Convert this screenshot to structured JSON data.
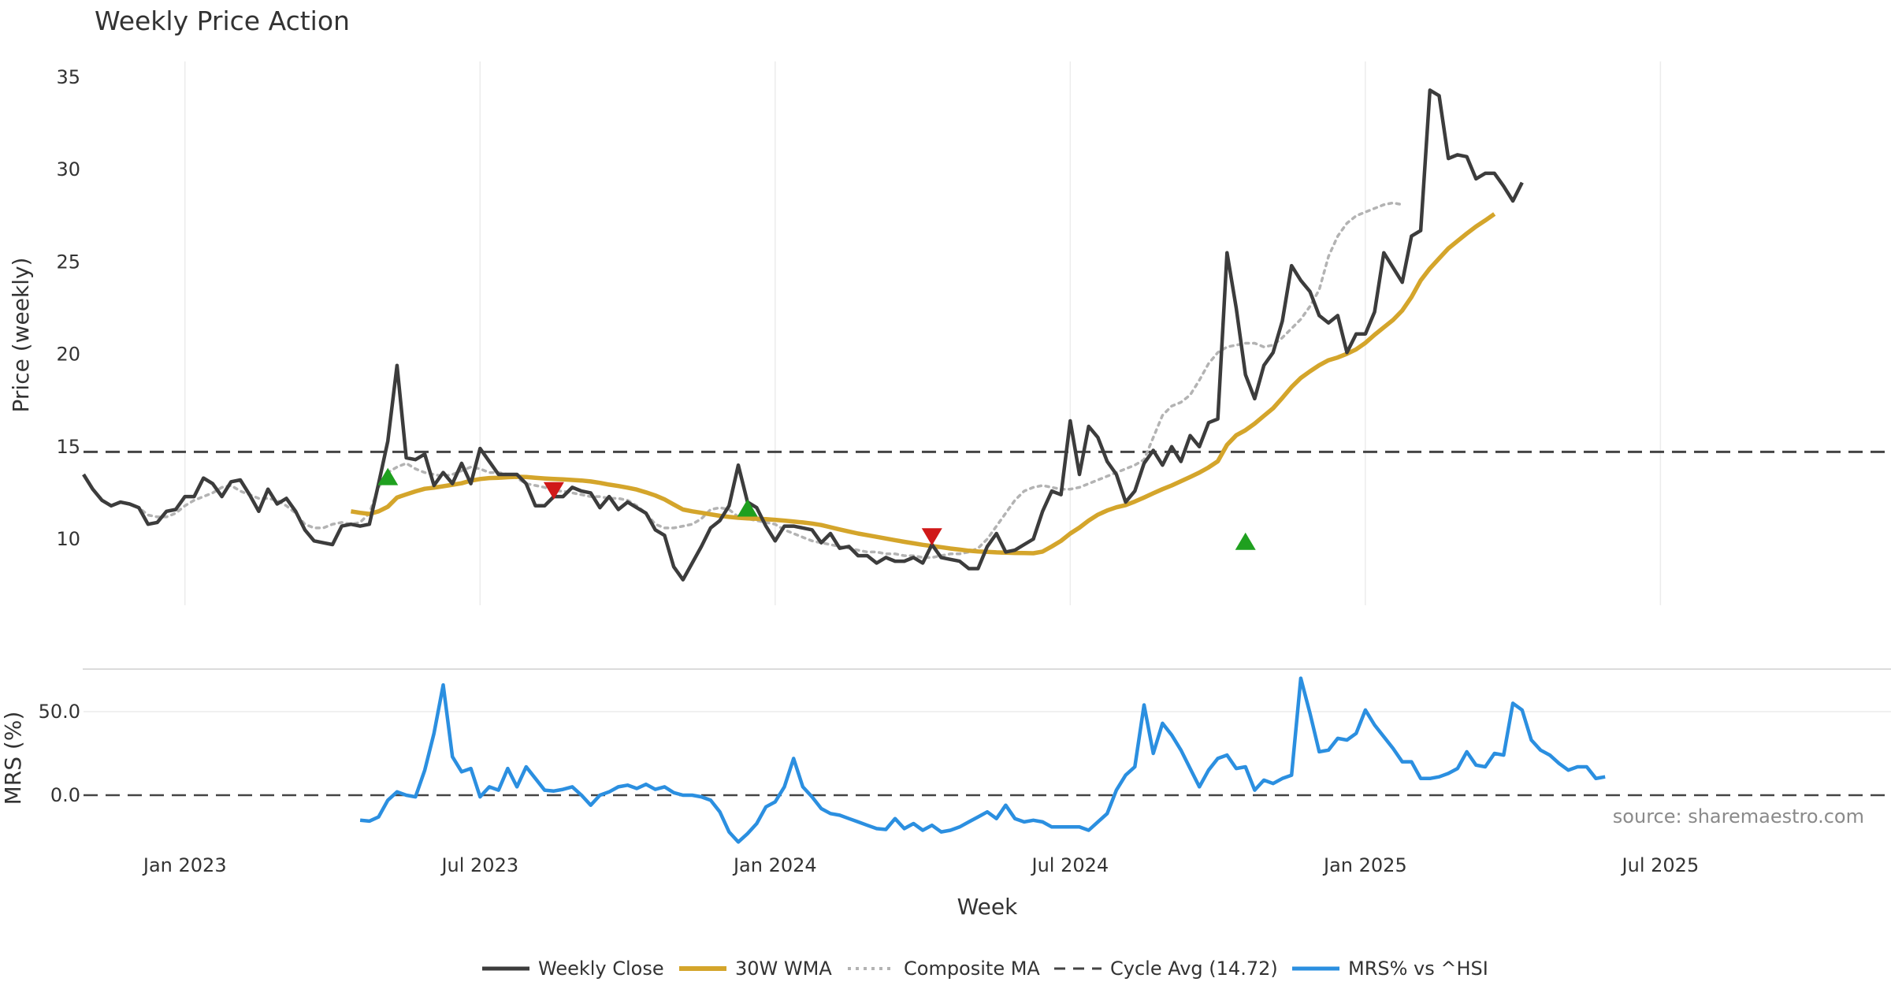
{
  "chart_data": [
    {
      "type": "line",
      "title": "Weekly Price Action",
      "ylabel": "Price (weekly)",
      "ylim": [
        6,
        36
      ],
      "yticks": [
        10,
        15,
        20,
        25,
        30,
        35
      ],
      "x_range_weeks": [
        0,
        196
      ],
      "x_ticks": [
        {
          "label": "Jan 2023",
          "week": 11
        },
        {
          "label": "Jul 2023",
          "week": 43
        },
        {
          "label": "Jan 2024",
          "week": 75
        },
        {
          "label": "Jul 2024",
          "week": 107
        },
        {
          "label": "Jan 2025",
          "week": 139
        },
        {
          "label": "Jul 2025",
          "week": 171
        }
      ],
      "cycle_avg": 14.72,
      "series": [
        {
          "name": "Weekly Close",
          "color": "#3c3c3c",
          "values": [
            13.5,
            12.7,
            12.1,
            11.8,
            12.0,
            11.9,
            11.7,
            10.8,
            10.9,
            11.5,
            11.6,
            12.3,
            12.3,
            13.3,
            13.0,
            12.3,
            13.1,
            13.2,
            12.4,
            11.5,
            12.7,
            11.9,
            12.2,
            11.5,
            10.5,
            9.9,
            9.8,
            9.7,
            10.7,
            10.8,
            10.7,
            10.8,
            13.0,
            15.3,
            19.4,
            14.4,
            14.3,
            14.6,
            12.9,
            13.6,
            13.0,
            14.1,
            13.0,
            14.9,
            14.2,
            13.5,
            13.5,
            13.5,
            13.0,
            11.8,
            11.8,
            12.3,
            12.3,
            12.8,
            12.6,
            12.5,
            11.7,
            12.3,
            11.6,
            12.0,
            11.7,
            11.4,
            10.5,
            10.2,
            8.5,
            7.8,
            8.7,
            9.6,
            10.6,
            11.0,
            11.8,
            14.0,
            12.0,
            11.7,
            10.7,
            9.9,
            10.7,
            10.7,
            10.6,
            10.5,
            9.8,
            10.3,
            9.5,
            9.6,
            9.1,
            9.1,
            8.7,
            9.0,
            8.8,
            8.8,
            9.0,
            8.7,
            9.7,
            9.0,
            8.9,
            8.8,
            8.4,
            8.4,
            9.6,
            10.3,
            9.3,
            9.4,
            9.7,
            10.0,
            11.5,
            12.6,
            12.4,
            16.4,
            13.5,
            16.1,
            15.5,
            14.2,
            13.5,
            12.0,
            12.6,
            14.1,
            14.8,
            14.0,
            15.0,
            14.2,
            15.6,
            15.0,
            16.3,
            16.5,
            25.5,
            22.5,
            18.9,
            17.6,
            19.4,
            20.1,
            21.8,
            24.8,
            24.0,
            23.4,
            22.1,
            21.7,
            22.1,
            20.1,
            21.1,
            21.1,
            22.3,
            25.5,
            24.7,
            23.9,
            26.4,
            26.7,
            34.3,
            34.0,
            30.6,
            30.8,
            30.7,
            29.5,
            29.8,
            29.8,
            29.1,
            28.3,
            29.3
          ]
        },
        {
          "name": "30W WMA",
          "color": "#d4a52b",
          "start_week": 29,
          "values": [
            11.5,
            11.42,
            11.36,
            11.5,
            11.75,
            12.25,
            12.42,
            12.58,
            12.72,
            12.78,
            12.86,
            12.94,
            13.02,
            13.16,
            13.25,
            13.3,
            13.32,
            13.35,
            13.37,
            13.36,
            13.32,
            13.28,
            13.25,
            13.23,
            13.2,
            13.17,
            13.12,
            13.04,
            12.95,
            12.87,
            12.78,
            12.68,
            12.53,
            12.36,
            12.15,
            11.87,
            11.6,
            11.5,
            11.42,
            11.34,
            11.26,
            11.2,
            11.15,
            11.12,
            11.1,
            11.08,
            11.04,
            11.0,
            10.95,
            10.9,
            10.84,
            10.76,
            10.64,
            10.52,
            10.41,
            10.3,
            10.21,
            10.12,
            10.03,
            9.94,
            9.85,
            9.77,
            9.69,
            9.62,
            9.56,
            9.49,
            9.43,
            9.37,
            9.33,
            9.31,
            9.28,
            9.26,
            9.25,
            9.24,
            9.23,
            9.32,
            9.6,
            9.9,
            10.3,
            10.62,
            11.0,
            11.32,
            11.55,
            11.72,
            11.84,
            12.03,
            12.25,
            12.48,
            12.7,
            12.9,
            13.13,
            13.36,
            13.6,
            13.88,
            14.21,
            15.1,
            15.62,
            15.89,
            16.25,
            16.67,
            17.08,
            17.64,
            18.23,
            18.72,
            19.08,
            19.41,
            19.68,
            19.83,
            20.03,
            20.27,
            20.62,
            21.06,
            21.46,
            21.86,
            22.37,
            23.1,
            24.0,
            24.65,
            25.19,
            25.73,
            26.14,
            26.54,
            26.92,
            27.25,
            27.6
          ]
        },
        {
          "name": "Composite MA",
          "color": "#b3b3b3",
          "start_week": 4,
          "values": [
            12.0,
            11.9,
            11.7,
            11.3,
            11.2,
            11.2,
            11.4,
            11.8,
            12.1,
            12.3,
            12.5,
            12.8,
            12.9,
            12.6,
            12.4,
            12.2,
            12.2,
            12.1,
            11.8,
            11.4,
            10.8,
            10.6,
            10.6,
            10.8,
            10.9,
            10.8,
            10.9,
            11.4,
            12.8,
            13.6,
            13.9,
            14.1,
            13.8,
            13.6,
            13.5,
            13.4,
            13.5,
            13.7,
            13.9,
            13.8,
            13.6,
            13.6,
            13.5,
            13.3,
            13.0,
            12.9,
            12.8,
            12.6,
            12.6,
            12.5,
            12.4,
            12.3,
            12.3,
            12.2,
            12.2,
            12.1,
            11.8,
            11.4,
            10.8,
            10.6,
            10.6,
            10.7,
            10.8,
            11.1,
            11.6,
            11.7,
            11.6,
            11.2,
            11.1,
            11.0,
            10.9,
            10.8,
            10.5,
            10.3,
            10.1,
            9.9,
            9.8,
            9.7,
            9.6,
            9.5,
            9.4,
            9.3,
            9.3,
            9.2,
            9.2,
            9.1,
            9.1,
            9.0,
            9.0,
            9.1,
            9.2,
            9.2,
            9.3,
            9.5,
            10.0,
            10.7,
            11.4,
            12.1,
            12.6,
            12.8,
            12.9,
            12.8,
            12.7,
            12.7,
            12.8,
            13.0,
            13.2,
            13.4,
            13.6,
            13.8,
            14.0,
            14.3,
            15.5,
            16.7,
            17.2,
            17.4,
            17.8,
            18.6,
            19.5,
            20.1,
            20.4,
            20.5,
            20.6,
            20.6,
            20.4,
            20.5,
            20.9,
            21.4,
            21.9,
            22.6,
            23.5,
            25.3,
            26.4,
            27.1,
            27.5,
            27.7,
            27.9,
            28.1,
            28.2,
            28.1
          ]
        }
      ],
      "markers": [
        {
          "type": "buy",
          "week": 33,
          "value": 13.3
        },
        {
          "type": "sell",
          "week": 51,
          "value": 12.7
        },
        {
          "type": "buy",
          "week": 72,
          "value": 11.6
        },
        {
          "type": "sell",
          "week": 92,
          "value": 10.2
        },
        {
          "type": "buy",
          "week": 126,
          "value": 9.8
        }
      ]
    },
    {
      "type": "line",
      "ylabel": "MRS (%)",
      "xlabel": "Week",
      "ylim": [
        -38,
        75
      ],
      "yticks": [
        "50.0",
        "0.0"
      ],
      "zero_line": 0,
      "series": [
        {
          "name": "MRS% vs ^HSI",
          "color": "#2b8fe0",
          "start_week": 30,
          "values": [
            -15,
            -15.5,
            -13,
            -3,
            2,
            0,
            -1,
            15,
            37,
            66,
            23,
            14,
            16,
            -1,
            5,
            3,
            16,
            5,
            17,
            10,
            3,
            2.5,
            3.5,
            5,
            0,
            -6,
            0,
            2,
            5,
            6,
            4,
            6.5,
            3.5,
            5,
            1.5,
            0,
            0,
            -1,
            -3,
            -10,
            -22,
            -28,
            -23,
            -17,
            -7,
            -4,
            5,
            22,
            5,
            -1,
            -8,
            -11,
            -12,
            -14,
            -16,
            -18,
            -20,
            -20.5,
            -14,
            -20,
            -17,
            -21,
            -18,
            -22,
            -21,
            -19,
            -16,
            -13,
            -10,
            -14,
            -6,
            -14,
            -16,
            -15,
            -16,
            -19,
            -19,
            -19,
            -19,
            -21,
            -16,
            -11,
            3,
            12,
            17,
            54,
            25,
            43,
            36,
            27,
            16,
            5,
            15,
            22,
            24,
            16,
            17,
            3,
            9,
            7,
            10,
            12,
            70,
            49,
            26,
            27,
            34,
            33,
            37,
            51,
            42,
            35,
            28,
            20,
            20,
            10,
            10,
            11,
            13,
            16,
            26,
            18,
            17,
            25,
            24,
            55,
            51,
            33,
            27,
            24,
            19,
            15,
            17,
            17,
            10,
            11
          ]
        }
      ],
      "source": "source: sharemaestro.com"
    }
  ],
  "legend": [
    {
      "label": "Weekly Close",
      "style": "solid",
      "color": "#3c3c3c"
    },
    {
      "label": "30W WMA",
      "style": "solid-thick",
      "color": "#d4a52b"
    },
    {
      "label": "Composite MA",
      "style": "dotted",
      "color": "#b3b3b3"
    },
    {
      "label": "Cycle Avg (14.72)",
      "style": "dashed",
      "color": "#444444"
    },
    {
      "label": "MRS% vs ^HSI",
      "style": "solid",
      "color": "#2b8fe0"
    }
  ],
  "colors": {
    "buy": "#1fa01f",
    "sell": "#d01818",
    "cycle_line": "#444444",
    "zero_line": "#444444"
  }
}
